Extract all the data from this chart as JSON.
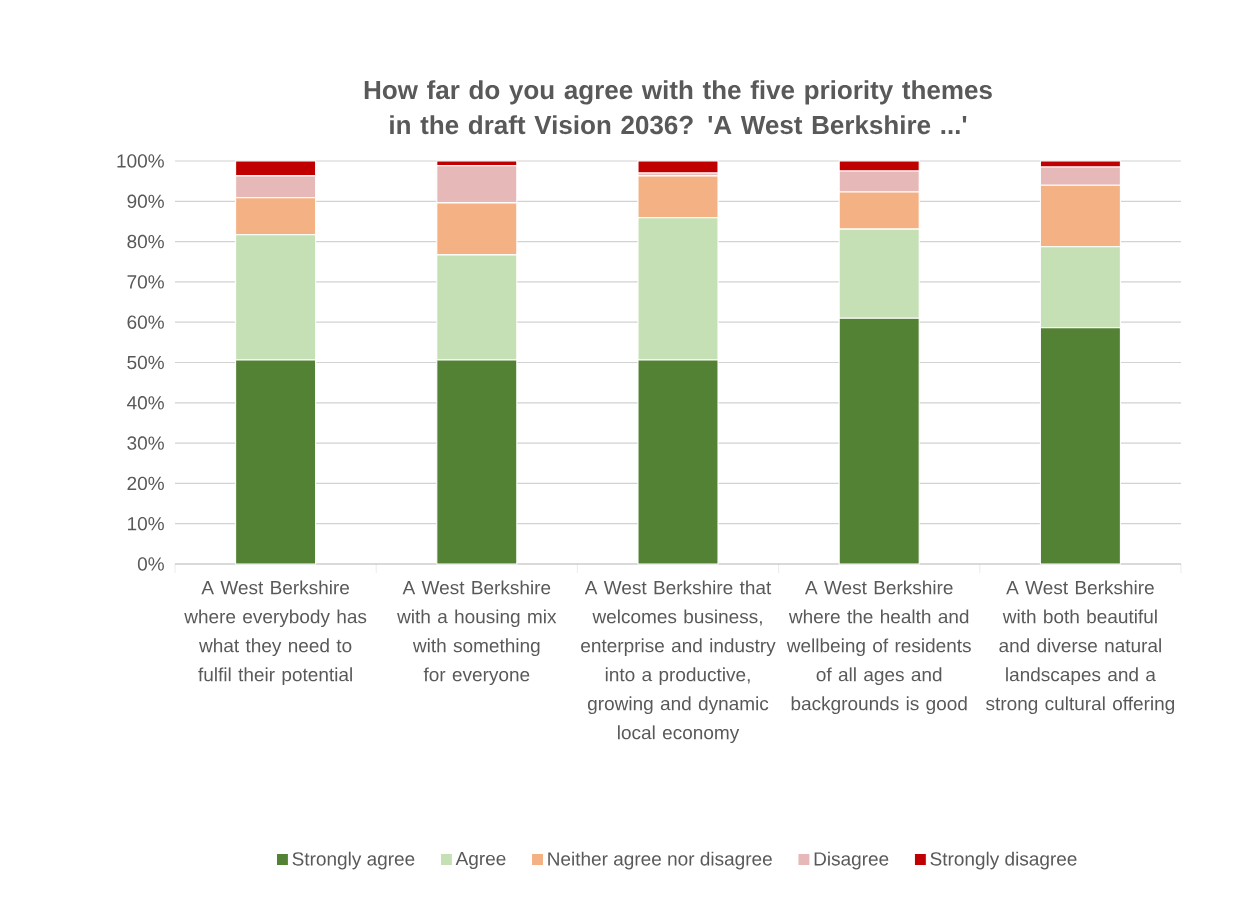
{
  "chart_data": {
    "type": "bar",
    "title": "How far do you agree with the five priority themes in the draft Vision 2036? 'A West Berkshire ...'",
    "categories": [
      "A West Berkshire where everybody has what they need to fulfil their potential",
      "A West Berkshire with a housing mix with something for everyone",
      "A West Berkshire that welcomes business, enterprise and industry into a productive, growing and dynamic local economy",
      "A West Berkshire where the health and wellbeing of residents of all ages and backgrounds is good",
      "A West Berkshire with both beautiful and diverse natural landscapes and a strong cultural offering"
    ],
    "series": [
      {
        "name": "Strongly agree",
        "color": "#548235",
        "values": [
          50.6,
          50.6,
          50.6,
          61.0,
          58.6
        ]
      },
      {
        "name": "Agree",
        "color": "#c5e0b4",
        "values": [
          31.1,
          26.1,
          35.3,
          22.1,
          20.1
        ]
      },
      {
        "name": "Neither agree nor disagree",
        "color": "#f4b183",
        "values": [
          9.2,
          12.9,
          10.4,
          9.2,
          15.3
        ]
      },
      {
        "name": "Disagree",
        "color": "#e6b9b8",
        "values": [
          5.4,
          9.2,
          0.7,
          5.2,
          4.5
        ]
      },
      {
        "name": "Strongly disagree",
        "color": "#c00000",
        "values": [
          3.7,
          1.2,
          3.0,
          2.5,
          1.5
        ]
      }
    ],
    "stacked": true,
    "ylim": [
      0,
      100
    ],
    "yticks": [
      {
        "value": 0,
        "label": "0%"
      },
      {
        "value": 10,
        "label": "10%"
      },
      {
        "value": 20,
        "label": "20%"
      },
      {
        "value": 30,
        "label": "30%"
      },
      {
        "value": 40,
        "label": "40%"
      },
      {
        "value": 50,
        "label": "50%"
      },
      {
        "value": 60,
        "label": "60%"
      },
      {
        "value": 70,
        "label": "70%"
      },
      {
        "value": 80,
        "label": "80%"
      },
      {
        "value": 90,
        "label": "90%"
      },
      {
        "value": 100,
        "label": "100%"
      }
    ],
    "grid": "y",
    "legend": "bottom"
  }
}
